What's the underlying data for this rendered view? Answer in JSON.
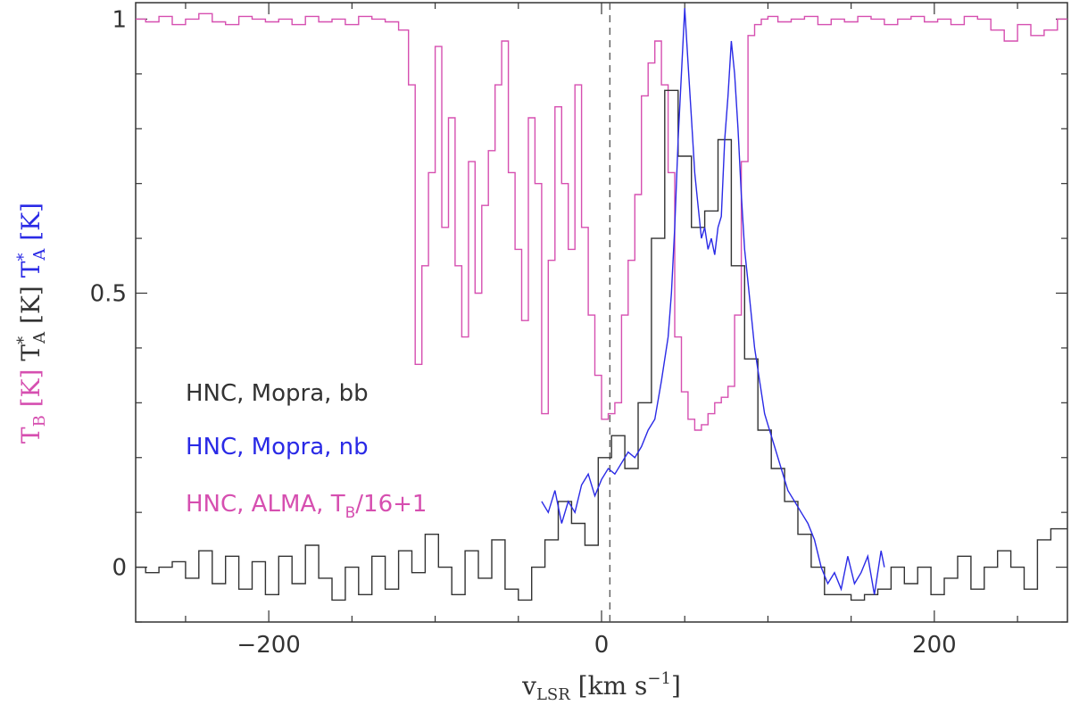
{
  "chart_data": {
    "type": "line",
    "title": "",
    "xlim": [
      -280,
      280
    ],
    "ylim": [
      -0.1,
      1.03
    ],
    "grid": false,
    "x_ticks": [
      -200,
      0,
      200
    ],
    "x_tick_labels": [
      "−200",
      "0",
      "200"
    ],
    "y_ticks": [
      0,
      0.5,
      1
    ],
    "y_tick_labels": [
      "0",
      "0.5",
      "1"
    ],
    "xlabel": {
      "main": "v",
      "sub": "LSR",
      "rest": " [km s",
      "sup": "−1",
      "end": "]"
    },
    "ylabel": {
      "pink": {
        "main": "T",
        "sub": "B",
        "unit": " [K] "
      },
      "black": {
        "main": "T",
        "sup": "*",
        "sub": "A",
        "unit": " [K] "
      },
      "blue": {
        "main": "T",
        "sup": "*",
        "sub": "A",
        "unit": " [K]"
      }
    },
    "annotations": [
      {
        "name": "systemic-velocity-line",
        "x": 5,
        "style": "dashed"
      }
    ],
    "legend": {
      "placement": "lower-left",
      "entries": [
        {
          "text": "HNC, Mopra, bb",
          "color": "#333333"
        },
        {
          "text": "HNC, Mopra, nb",
          "color": "#2a2ae6"
        },
        {
          "text": "HNC, ALMA, T",
          "sub": "B",
          "after": "/16+1",
          "color": "#d64fb0"
        }
      ]
    },
    "series": [
      {
        "name": "HNC, ALMA, TB/16+1",
        "color": "#d64fb0",
        "step": true,
        "x": [
          -278,
          -270,
          -262,
          -254,
          -246,
          -238,
          -230,
          -222,
          -214,
          -206,
          -198,
          -190,
          -182,
          -174,
          -166,
          -158,
          -150,
          -142,
          -134,
          -126,
          -118,
          -114,
          -110,
          -106,
          -102,
          -98,
          -94,
          -90,
          -86,
          -82,
          -78,
          -74,
          -70,
          -66,
          -62,
          -58,
          -54,
          -50,
          -46,
          -42,
          -38,
          -34,
          -30,
          -26,
          -22,
          -18,
          -14,
          -10,
          -6,
          -2,
          2,
          6,
          10,
          14,
          18,
          22,
          26,
          30,
          34,
          38,
          42,
          46,
          50,
          54,
          58,
          62,
          66,
          70,
          74,
          78,
          82,
          86,
          90,
          94,
          98,
          102,
          110,
          118,
          126,
          134,
          142,
          150,
          158,
          166,
          174,
          182,
          190,
          198,
          206,
          214,
          222,
          230,
          238,
          246,
          254,
          262,
          270,
          278
        ],
        "y": [
          1.0,
          0.995,
          1.005,
          0.99,
          1.0,
          1.01,
          0.995,
          0.99,
          1.005,
          1.0,
          0.995,
          1.0,
          0.99,
          1.005,
          0.995,
          1.0,
          0.99,
          1.005,
          1.0,
          0.995,
          0.98,
          0.88,
          0.37,
          0.55,
          0.72,
          0.95,
          0.62,
          0.82,
          0.55,
          0.42,
          0.74,
          0.5,
          0.66,
          0.76,
          0.88,
          0.96,
          0.72,
          0.58,
          0.45,
          0.82,
          0.7,
          0.28,
          0.56,
          0.84,
          0.7,
          0.58,
          0.88,
          0.62,
          0.46,
          0.35,
          0.27,
          0.28,
          0.3,
          0.46,
          0.56,
          0.68,
          0.86,
          0.92,
          0.96,
          0.88,
          0.72,
          0.42,
          0.32,
          0.27,
          0.25,
          0.26,
          0.28,
          0.3,
          0.31,
          0.33,
          0.46,
          0.74,
          0.97,
          0.99,
          1.0,
          1.005,
          0.995,
          1.0,
          1.005,
          0.99,
          1.0,
          0.995,
          1.005,
          1.0,
          0.99,
          1.0,
          1.005,
          0.995,
          1.0,
          0.99,
          1.005,
          1.0,
          0.98,
          0.96,
          0.99,
          0.97,
          0.98,
          1.0
        ]
      },
      {
        "name": "HNC, Mopra, bb",
        "color": "#333333",
        "step": true,
        "x": [
          -278,
          -270,
          -262,
          -254,
          -246,
          -238,
          -230,
          -222,
          -214,
          -206,
          -198,
          -190,
          -182,
          -174,
          -166,
          -158,
          -150,
          -142,
          -134,
          -126,
          -118,
          -110,
          -102,
          -94,
          -86,
          -78,
          -70,
          -62,
          -54,
          -46,
          -38,
          -30,
          -22,
          -14,
          -6,
          2,
          10,
          18,
          26,
          34,
          42,
          50,
          58,
          66,
          74,
          82,
          90,
          98,
          106,
          114,
          122,
          130,
          138,
          146,
          154,
          162,
          170,
          178,
          186,
          194,
          202,
          210,
          218,
          226,
          234,
          242,
          250,
          258,
          266,
          274,
          280
        ],
        "y": [
          0.0,
          -0.01,
          0.0,
          0.01,
          -0.02,
          0.03,
          -0.03,
          0.02,
          -0.04,
          0.01,
          -0.05,
          0.02,
          -0.03,
          0.04,
          -0.02,
          -0.06,
          0.0,
          -0.05,
          0.02,
          -0.04,
          0.03,
          -0.01,
          0.06,
          0.0,
          -0.05,
          0.03,
          -0.02,
          0.05,
          -0.04,
          -0.06,
          0.0,
          0.05,
          0.12,
          0.08,
          0.04,
          0.2,
          0.24,
          0.18,
          0.3,
          0.6,
          0.87,
          0.75,
          0.62,
          0.65,
          0.78,
          0.55,
          0.38,
          0.25,
          0.18,
          0.12,
          0.06,
          0.0,
          -0.05,
          -0.05,
          -0.06,
          -0.05,
          -0.04,
          0.0,
          -0.03,
          0.0,
          -0.05,
          -0.02,
          0.02,
          -0.04,
          0.0,
          0.03,
          0.0,
          -0.04,
          0.05,
          0.07,
          0.07
        ]
      },
      {
        "name": "HNC, Mopra, nb",
        "color": "#2a2ae6",
        "step": false,
        "x": [
          -36,
          -32,
          -28,
          -24,
          -20,
          -16,
          -12,
          -8,
          -4,
          0,
          4,
          8,
          12,
          16,
          20,
          24,
          28,
          32,
          36,
          40,
          42,
          44,
          46,
          48,
          50,
          52,
          54,
          56,
          58,
          60,
          62,
          64,
          66,
          68,
          70,
          72,
          74,
          76,
          78,
          80,
          82,
          84,
          86,
          88,
          90,
          92,
          94,
          96,
          98,
          100,
          104,
          108,
          112,
          116,
          120,
          124,
          128,
          132,
          136,
          140,
          144,
          148,
          152,
          156,
          160,
          164,
          168,
          170
        ],
        "y": [
          0.12,
          0.1,
          0.14,
          0.08,
          0.12,
          0.1,
          0.15,
          0.17,
          0.13,
          0.16,
          0.18,
          0.17,
          0.19,
          0.21,
          0.2,
          0.22,
          0.25,
          0.27,
          0.34,
          0.42,
          0.5,
          0.62,
          0.78,
          0.9,
          1.02,
          0.92,
          0.82,
          0.72,
          0.66,
          0.6,
          0.62,
          0.58,
          0.6,
          0.57,
          0.62,
          0.64,
          0.78,
          0.86,
          0.96,
          0.9,
          0.8,
          0.68,
          0.58,
          0.52,
          0.46,
          0.4,
          0.36,
          0.32,
          0.28,
          0.26,
          0.22,
          0.18,
          0.14,
          0.12,
          0.1,
          0.08,
          0.05,
          0.0,
          -0.03,
          -0.01,
          -0.04,
          0.02,
          -0.03,
          -0.01,
          0.02,
          -0.05,
          0.03,
          0.0
        ]
      }
    ]
  }
}
